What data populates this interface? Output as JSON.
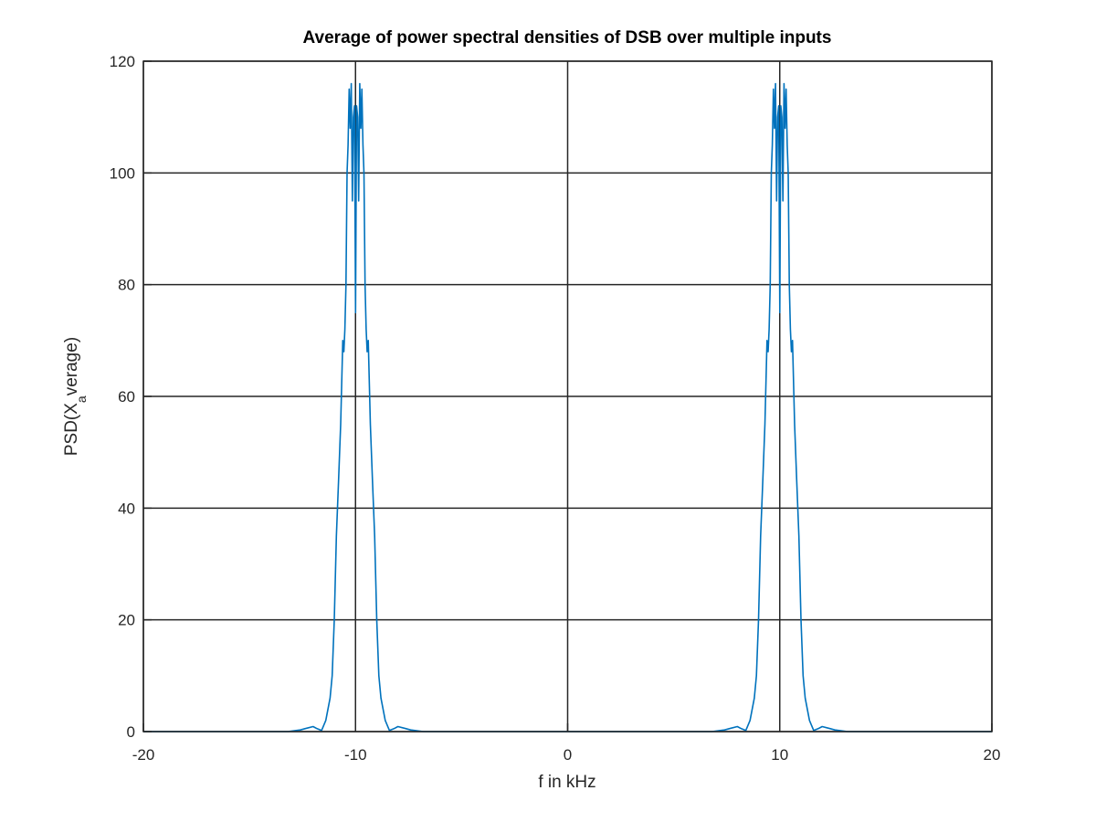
{
  "chart_data": {
    "type": "line",
    "title": "Average of power spectral densities of DSB over multiple inputs",
    "xlabel": "f in kHz",
    "ylabel": {
      "prefix": "PSD(X",
      "subscript": "a",
      "suffix": "verage)"
    },
    "xlim": [
      -20,
      20
    ],
    "ylim": [
      0,
      120
    ],
    "xticks": [
      -20,
      -10,
      0,
      10,
      20
    ],
    "yticks": [
      0,
      20,
      40,
      60,
      80,
      100,
      120
    ],
    "grid": true,
    "line_color": "#0072BD",
    "grid_color": "#262626",
    "series": [
      {
        "x": [
          -20,
          -13.2,
          -12.6,
          -12.3,
          -12.0,
          -11.8,
          -11.6,
          -11.4,
          -11.2,
          -11.1,
          -11.0,
          -10.9,
          -10.8,
          -10.7,
          -10.6,
          -10.55,
          -10.5,
          -10.45,
          -10.4,
          -10.35,
          -10.3,
          -10.25,
          -10.2,
          -10.15,
          -10.1,
          -10.05,
          -10.0,
          -9.95,
          -9.9,
          -9.85,
          -9.8,
          -9.75,
          -9.7,
          -9.65,
          -9.6,
          -9.55,
          -9.5,
          -9.45,
          -9.4,
          -9.3,
          -9.2,
          -9.1,
          -9.0,
          -8.9,
          -8.8,
          -8.6,
          -8.4,
          -8.2,
          -8.0,
          -7.7,
          -7.4,
          -6.8,
          6.8,
          7.4,
          7.7,
          8.0,
          8.2,
          8.4,
          8.6,
          8.8,
          8.9,
          9.0,
          9.1,
          9.2,
          9.3,
          9.4,
          9.45,
          9.5,
          9.55,
          9.6,
          9.65,
          9.7,
          9.75,
          9.8,
          9.85,
          9.9,
          9.95,
          10.0,
          10.05,
          10.1,
          10.15,
          10.2,
          10.25,
          10.3,
          10.35,
          10.4,
          10.45,
          10.5,
          10.55,
          10.6,
          10.7,
          10.8,
          10.9,
          11.0,
          11.1,
          11.2,
          11.4,
          11.6,
          11.8,
          12.0,
          12.3,
          12.6,
          13.2,
          20
        ],
        "y": [
          0,
          0,
          0.3,
          0.6,
          0.9,
          0.5,
          0.2,
          2,
          6,
          10,
          20,
          35,
          45,
          55,
          70,
          68,
          72,
          80,
          100,
          105,
          115,
          108,
          116,
          95,
          110,
          112,
          75,
          112,
          110,
          95,
          116,
          108,
          115,
          105,
          100,
          80,
          72,
          68,
          70,
          55,
          45,
          35,
          20,
          10,
          6,
          2,
          0.2,
          0.5,
          0.9,
          0.6,
          0.3,
          0,
          0,
          0.3,
          0.6,
          0.9,
          0.5,
          0.2,
          2,
          6,
          10,
          20,
          35,
          45,
          55,
          70,
          68,
          72,
          80,
          100,
          105,
          115,
          108,
          116,
          95,
          110,
          112,
          75,
          112,
          110,
          95,
          116,
          108,
          115,
          105,
          100,
          80,
          72,
          68,
          70,
          55,
          45,
          35,
          20,
          10,
          6,
          2,
          0.2,
          0.5,
          0.9,
          0.6,
          0.3,
          0,
          0
        ]
      }
    ]
  }
}
